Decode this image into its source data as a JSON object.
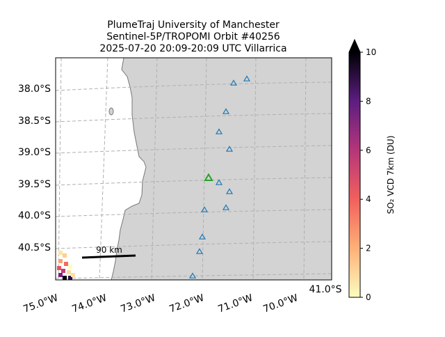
{
  "title": {
    "lines": [
      "PlumeTraj    University of Manchester",
      "Sentinel-5P/TROPOMI Orbit #40256",
      "2025-07-20   20:09-20:09 UTC   Villarrica"
    ]
  },
  "map": {
    "lat_labels": [
      "38.0°S",
      "38.5°S",
      "39.0°S",
      "39.5°S",
      "40.0°S",
      "40.5°S"
    ],
    "lon_labels": [
      "75.0°W",
      "74.0°W",
      "73.0°W",
      "72.0°W",
      "71.0°W",
      "70.0°W"
    ],
    "corner_label": "41.0°S",
    "scale_bar": "90 km"
  },
  "colorbar": {
    "label": "SO₂ VCD 7km (DU)",
    "range": [
      0,
      10
    ],
    "ticks": [
      0,
      2,
      4,
      6,
      8,
      10
    ]
  }
}
